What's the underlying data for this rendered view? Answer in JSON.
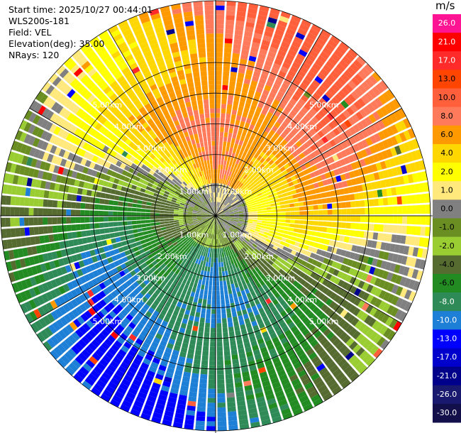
{
  "header": {
    "start_time": "Start time: 2025/10/27 00:44:01",
    "station": "WLS200s-181",
    "field": "Field: VEL",
    "elevation": "Elevation(deg): 35.00",
    "nrays": "NRays: 120"
  },
  "colorbar": {
    "unit": "m/s",
    "ticks": [
      "26.0",
      "21.0",
      "17.0",
      "13.0",
      "10.0",
      "8.0",
      "6.0",
      "4.0",
      "2.0",
      "1.0",
      "0.0",
      "-1.0",
      "-2.0",
      "-4.0",
      "-6.0",
      "-8.0",
      "-10.0",
      "-13.0",
      "-17.0",
      "-21.0",
      "-26.0",
      "-30.0"
    ],
    "colors": [
      "#ff1493",
      "#ff0000",
      "#ff2a2a",
      "#ff4500",
      "#ff5f3a",
      "#ff7a5a",
      "#ff9900",
      "#ffd700",
      "#ffff00",
      "#ffe87c",
      "#808080",
      "#6b8e23",
      "#9acd32",
      "#556b2f",
      "#228b22",
      "#2e8b57",
      "#1e7fd6",
      "#0000ff",
      "#0000cd",
      "#00008b",
      "#191970",
      "#120f4a"
    ]
  },
  "chart_data": {
    "type": "heatmap",
    "title": "",
    "projection": "polar PPI",
    "n_rays": 120,
    "range_rings_km": [
      1.0,
      2.0,
      3.0,
      4.0,
      5.0
    ],
    "range_labels": [
      "1.00km",
      "2.00km",
      "3.00km",
      "4.00km",
      "5.00km"
    ],
    "field": "VEL",
    "unit": "m/s",
    "value_range": [
      -30.0,
      26.0
    ],
    "pattern": "dipole: positive velocities north/northeast, negative velocities south/southwest"
  }
}
